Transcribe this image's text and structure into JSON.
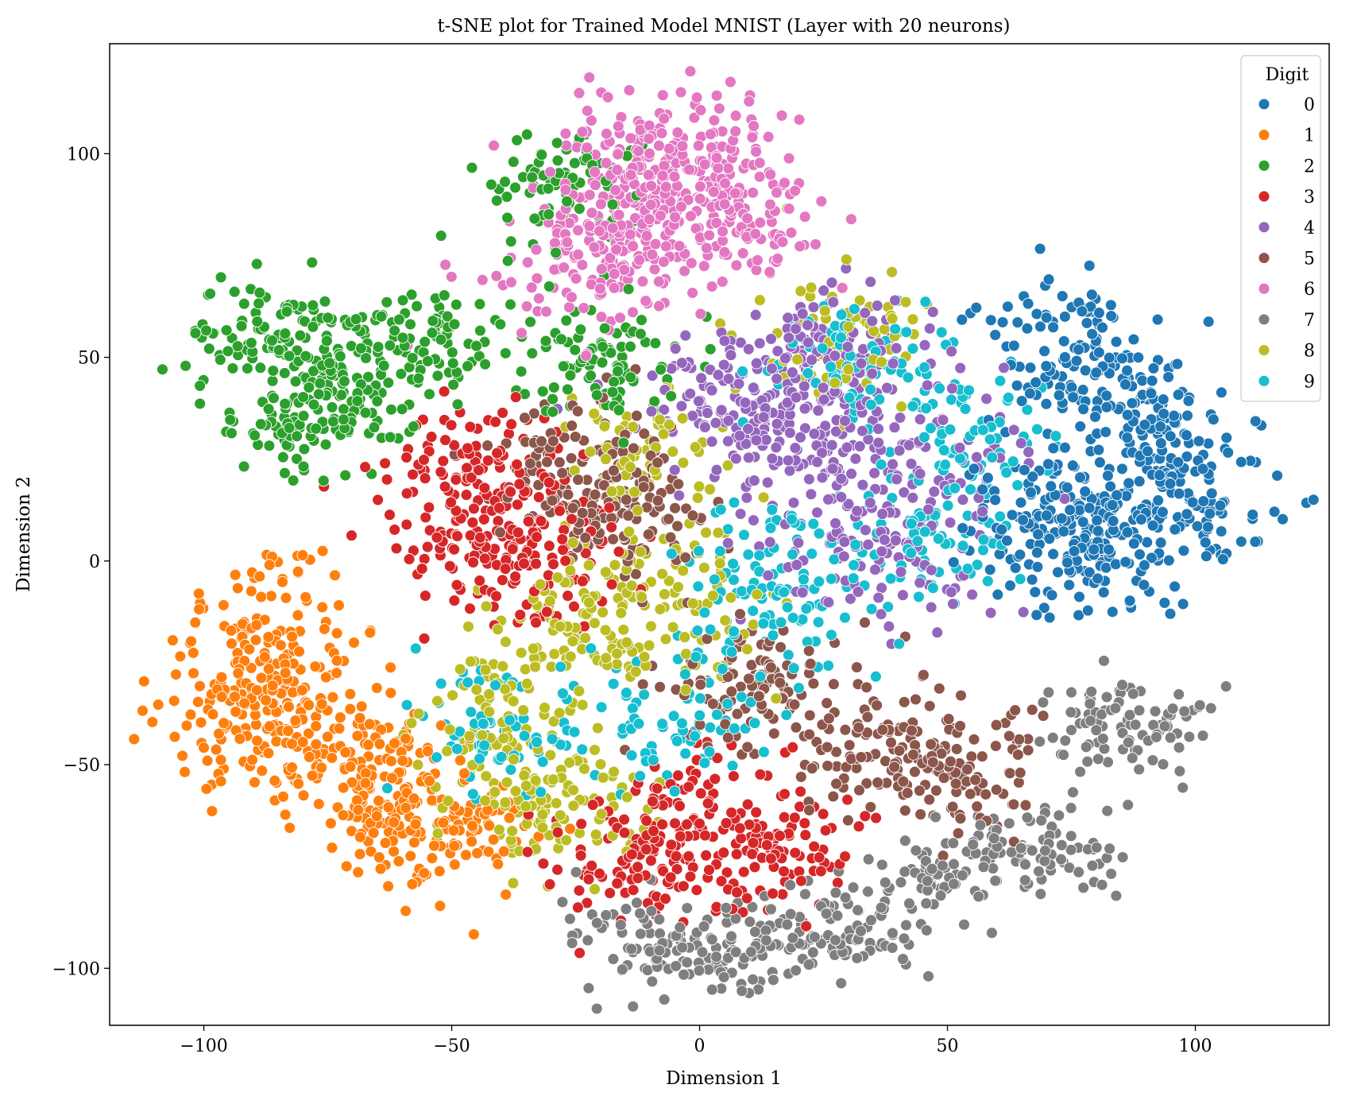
{
  "chart_data": {
    "type": "scatter",
    "title": "t-SNE plot for Trained Model MNIST (Layer with 20 neurons)",
    "xlabel": "Dimension 1",
    "ylabel": "Dimension 2",
    "xlim": [
      -119,
      127
    ],
    "ylim": [
      -114,
      127
    ],
    "xticks": [
      -100,
      -50,
      0,
      50,
      100
    ],
    "xtick_labels": [
      "−100",
      "−50",
      "0",
      "50",
      "100"
    ],
    "yticks": [
      -100,
      -50,
      0,
      50,
      100
    ],
    "ytick_labels": [
      "−100",
      "−50",
      "0",
      "50",
      "100"
    ],
    "grid": false,
    "legend": {
      "title": "Digit",
      "placement": "top-right",
      "entries": [
        "0",
        "1",
        "2",
        "3",
        "4",
        "5",
        "6",
        "7",
        "8",
        "9"
      ]
    },
    "colors": [
      "#1f77b4",
      "#ff7f0e",
      "#2ca02c",
      "#d62728",
      "#9467bd",
      "#8c564b",
      "#e377c2",
      "#7f7f7f",
      "#bcbd22",
      "#17becf"
    ],
    "clusters": [
      {
        "digit": "0",
        "centers": [
          [
            75,
            52
          ],
          [
            90,
            35
          ],
          [
            100,
            15
          ],
          [
            82,
            5
          ],
          [
            70,
            10
          ]
        ],
        "spread": [
          8,
          9
        ],
        "count": 560
      },
      {
        "digit": "1",
        "centers": [
          [
            -88,
            -15
          ],
          [
            -80,
            -40
          ],
          [
            -65,
            -55
          ],
          [
            -52,
            -65
          ],
          [
            -92,
            -35
          ]
        ],
        "spread": [
          9,
          9
        ],
        "count": 520
      },
      {
        "digit": "2",
        "centers": [
          [
            -85,
            55
          ],
          [
            -70,
            45
          ],
          [
            -55,
            55
          ],
          [
            -80,
            35
          ],
          [
            -20,
            50
          ],
          [
            -28,
            92
          ]
        ],
        "spread": [
          9,
          7
        ],
        "count": 520
      },
      {
        "digit": "3",
        "centers": [
          [
            -45,
            22
          ],
          [
            -45,
            5
          ],
          [
            -30,
            0
          ],
          [
            0,
            -65
          ],
          [
            -15,
            -75
          ],
          [
            15,
            -70
          ]
        ],
        "spread": [
          9,
          8
        ],
        "count": 540
      },
      {
        "digit": "4",
        "centers": [
          [
            30,
            50
          ],
          [
            20,
            30
          ],
          [
            45,
            20
          ],
          [
            35,
            0
          ],
          [
            10,
            40
          ]
        ],
        "spread": [
          11,
          9
        ],
        "count": 520
      },
      {
        "digit": "5",
        "centers": [
          [
            -15,
            10
          ],
          [
            35,
            -45
          ],
          [
            50,
            -50
          ],
          [
            10,
            -30
          ],
          [
            -25,
            25
          ]
        ],
        "spread": [
          9,
          8
        ],
        "count": 480
      },
      {
        "digit": "6",
        "centers": [
          [
            -10,
            90
          ],
          [
            -20,
            75
          ],
          [
            5,
            82
          ],
          [
            -5,
            100
          ]
        ],
        "spread": [
          11,
          10
        ],
        "count": 500
      },
      {
        "digit": "7",
        "centers": [
          [
            85,
            -40
          ],
          [
            70,
            -70
          ],
          [
            50,
            -78
          ],
          [
            10,
            -95
          ],
          [
            -10,
            -95
          ],
          [
            30,
            -90
          ]
        ],
        "spread": [
          9,
          6
        ],
        "count": 480
      },
      {
        "digit": "8",
        "centers": [
          [
            -10,
            25
          ],
          [
            -25,
            -15
          ],
          [
            -40,
            -40
          ],
          [
            -30,
            -60
          ],
          [
            -5,
            -10
          ],
          [
            30,
            55
          ]
        ],
        "spread": [
          9,
          9
        ],
        "count": 500
      },
      {
        "digit": "9",
        "centers": [
          [
            15,
            -15
          ],
          [
            15,
            0
          ],
          [
            -5,
            -40
          ],
          [
            45,
            5
          ],
          [
            55,
            30
          ],
          [
            -40,
            -40
          ],
          [
            30,
            50
          ]
        ],
        "spread": [
          9,
          8
        ],
        "count": 500
      }
    ]
  }
}
